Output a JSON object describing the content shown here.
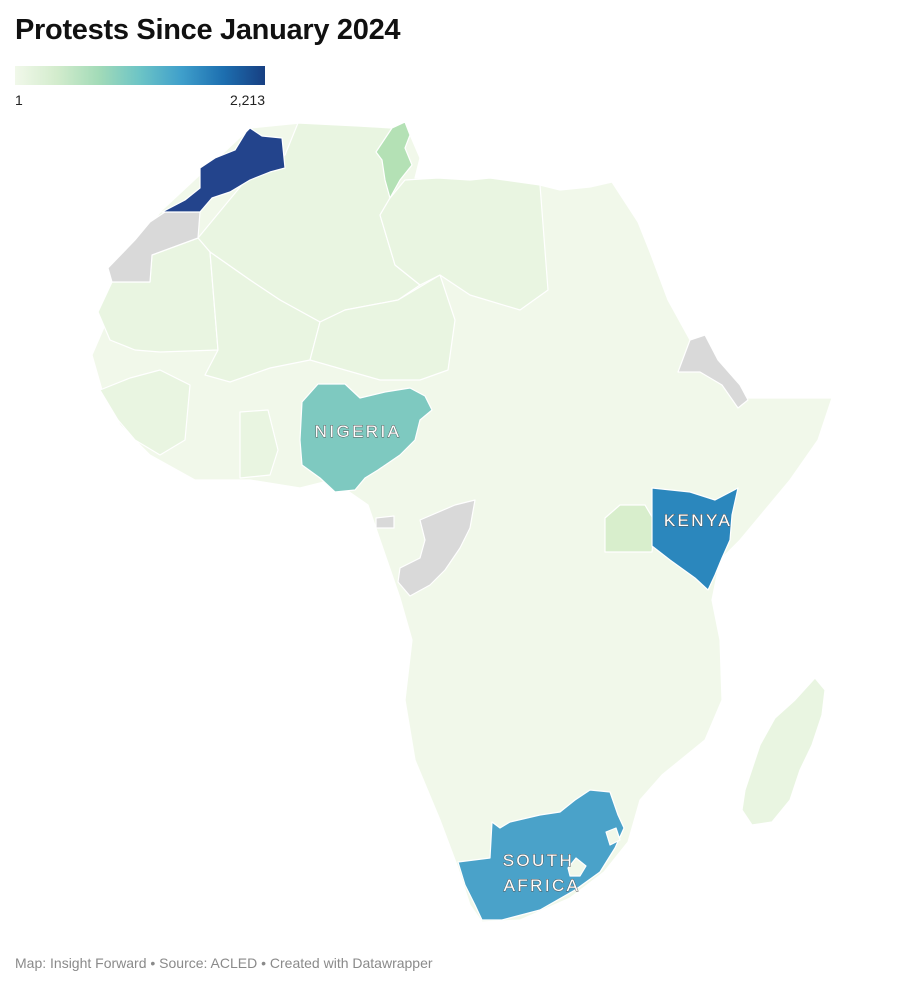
{
  "title": "Protests Since January 2024",
  "legend": {
    "min_label": "1",
    "max_label": "2,213",
    "gradient": [
      "#f1f8ea",
      "#d3eccd",
      "#a3dbb8",
      "#6cc4c6",
      "#3f9fcb",
      "#1d6fb0",
      "#173f82"
    ]
  },
  "map": {
    "labels": {
      "nigeria": "NIGERIA",
      "kenya": "KENYA",
      "south_africa": "SOUTH AFRICA"
    },
    "colors": {
      "morocco": "#23448c",
      "nigeria": "#7ec9c0",
      "kenya": "#2b87bd",
      "south_africa": "#4aa2c9",
      "tunisia": "#b4e1b5",
      "uganda": "#d8eecc",
      "low_activity": "#e9f5e1",
      "lowest_activity": "#f1f8ea",
      "no_data": "#d9d9d9"
    }
  },
  "credits": "Map: Insight Forward • Source: ACLED • Created with Datawrapper"
}
